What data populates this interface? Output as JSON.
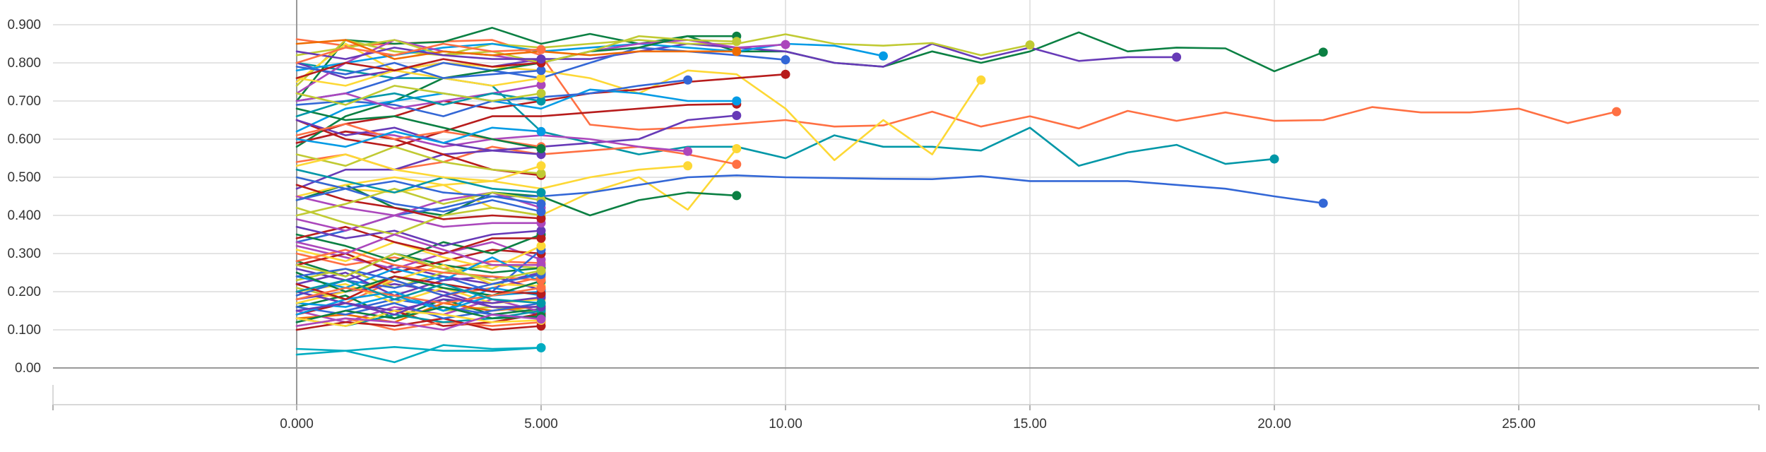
{
  "chart_data": {
    "type": "line",
    "title": "",
    "xlabel": "",
    "ylabel": "",
    "xlim": [
      -5,
      30
    ],
    "ylim": [
      -0.1,
      0.97
    ],
    "x_tick_labels": [
      {
        "value": 0,
        "label": "0.000"
      },
      {
        "value": 5,
        "label": "5.000"
      },
      {
        "value": 10,
        "label": "10.00"
      },
      {
        "value": 15,
        "label": "15.00"
      },
      {
        "value": 20,
        "label": "20.00"
      },
      {
        "value": 25,
        "label": "25.00"
      }
    ],
    "y_tick_labels": [
      {
        "value": 0.0,
        "label": "0.00"
      },
      {
        "value": 0.1,
        "label": "0.100"
      },
      {
        "value": 0.2,
        "label": "0.200"
      },
      {
        "value": 0.3,
        "label": "0.300"
      },
      {
        "value": 0.4,
        "label": "0.400"
      },
      {
        "value": 0.5,
        "label": "0.500"
      },
      {
        "value": 0.6,
        "label": "0.600"
      },
      {
        "value": 0.7,
        "label": "0.700"
      },
      {
        "value": 0.8,
        "label": "0.800"
      },
      {
        "value": 0.9,
        "label": "0.900"
      }
    ],
    "grid": true,
    "legend": "none",
    "series": [
      {
        "color": "#ff7043",
        "values": [
          0.862,
          0.845,
          0.85,
          0.856,
          0.86,
          0.82,
          0.638,
          0.625,
          0.63,
          0.64,
          0.65,
          0.633,
          0.636,
          0.672,
          0.633,
          0.66,
          0.628,
          0.674,
          0.648,
          0.67,
          0.648,
          0.65,
          0.684,
          0.67,
          0.67,
          0.68,
          0.642,
          0.672
        ]
      },
      {
        "color": "#0097a7",
        "values": [
          0.8,
          0.78,
          0.76,
          0.76,
          0.74,
          0.62,
          0.59,
          0.56,
          0.58,
          0.58,
          0.55,
          0.61,
          0.58,
          0.58,
          0.57,
          0.63,
          0.53,
          0.565,
          0.585,
          0.535,
          0.548
        ]
      },
      {
        "color": "#0b8043",
        "values": [
          0.7,
          0.86,
          0.85,
          0.855,
          0.892,
          0.85,
          0.876,
          0.85,
          0.87,
          0.83,
          0.83,
          0.8,
          0.79,
          0.83,
          0.8,
          0.83,
          0.88,
          0.83,
          0.84,
          0.838,
          0.778,
          0.828
        ]
      },
      {
        "color": "#673ab7",
        "values": [
          0.8,
          0.76,
          0.78,
          0.8,
          0.79,
          0.81,
          0.81,
          0.83,
          0.85,
          0.84,
          0.83,
          0.8,
          0.79,
          0.85,
          0.81,
          0.84,
          0.805,
          0.815,
          0.815
        ]
      },
      {
        "color": "#c0ca33",
        "values": [
          0.74,
          0.86,
          0.83,
          0.82,
          0.85,
          0.84,
          0.85,
          0.86,
          0.85,
          0.85,
          0.875,
          0.85,
          0.845,
          0.852,
          0.82,
          0.847
        ]
      },
      {
        "color": "#fdd835",
        "values": [
          0.75,
          0.85,
          0.78,
          0.8,
          0.79,
          0.78,
          0.76,
          0.72,
          0.78,
          0.77,
          0.68,
          0.545,
          0.65,
          0.56,
          0.755
        ]
      },
      {
        "color": "#039be5",
        "values": [
          0.78,
          0.8,
          0.82,
          0.84,
          0.85,
          0.83,
          0.84,
          0.85,
          0.84,
          0.83,
          0.85,
          0.845,
          0.818
        ]
      },
      {
        "color": "#3367d6",
        "values": [
          0.7,
          0.72,
          0.76,
          0.8,
          0.78,
          0.76,
          0.8,
          0.84,
          0.83,
          0.82,
          0.808
        ]
      },
      {
        "color": "#ab47bc",
        "values": [
          0.72,
          0.8,
          0.86,
          0.83,
          0.82,
          0.8,
          0.83,
          0.85,
          0.86,
          0.84,
          0.848
        ]
      },
      {
        "color": "#b71c1c",
        "values": [
          0.6,
          0.64,
          0.66,
          0.7,
          0.68,
          0.7,
          0.72,
          0.73,
          0.75,
          0.76,
          0.77
        ]
      },
      {
        "color": "#0b8043",
        "values": [
          0.58,
          0.66,
          0.7,
          0.76,
          0.78,
          0.8,
          0.83,
          0.84,
          0.87,
          0.87
        ]
      },
      {
        "color": "#fdd835",
        "values": [
          0.5,
          0.47,
          0.46,
          0.48,
          0.42,
          0.4,
          0.46,
          0.5,
          0.415,
          0.575
        ]
      },
      {
        "color": "#ff7043",
        "values": [
          0.54,
          0.56,
          0.52,
          0.54,
          0.58,
          0.56,
          0.57,
          0.58,
          0.56,
          0.534
        ]
      },
      {
        "color": "#b71c1c",
        "values": [
          0.65,
          0.6,
          0.58,
          0.62,
          0.66,
          0.66,
          0.67,
          0.68,
          0.69,
          0.692
        ]
      },
      {
        "color": "#673ab7",
        "values": [
          0.47,
          0.52,
          0.52,
          0.56,
          0.57,
          0.58,
          0.59,
          0.6,
          0.65,
          0.662
        ]
      },
      {
        "color": "#0b8043",
        "values": [
          0.44,
          0.48,
          0.42,
          0.4,
          0.46,
          0.45,
          0.4,
          0.44,
          0.46,
          0.452
        ]
      },
      {
        "color": "#c0ca33",
        "values": [
          0.82,
          0.84,
          0.86,
          0.82,
          0.83,
          0.8,
          0.83,
          0.87,
          0.86,
          0.856
        ]
      },
      {
        "color": "#039be5",
        "values": [
          0.62,
          0.68,
          0.7,
          0.72,
          0.7,
          0.68,
          0.73,
          0.72,
          0.7,
          0.7
        ]
      },
      {
        "color": "#ef6c00",
        "values": [
          0.85,
          0.86,
          0.81,
          0.83,
          0.82,
          0.83,
          0.82,
          0.83,
          0.83,
          0.83
        ]
      },
      {
        "color": "#3367d6",
        "values": [
          0.69,
          0.7,
          0.69,
          0.66,
          0.7,
          0.71,
          0.72,
          0.74,
          0.755
        ]
      },
      {
        "color": "#ab47bc",
        "values": [
          0.59,
          0.62,
          0.61,
          0.58,
          0.6,
          0.61,
          0.6,
          0.58,
          0.568
        ]
      },
      {
        "color": "#fdd835",
        "values": [
          0.45,
          0.48,
          0.5,
          0.48,
          0.49,
          0.47,
          0.5,
          0.52,
          0.53
        ]
      },
      {
        "color": "#3367d6",
        "values": [
          0.33,
          0.36,
          0.4,
          0.42,
          0.45,
          0.45,
          0.46,
          0.48,
          0.5,
          0.505,
          0.5,
          0.498,
          0.496,
          0.495,
          0.503,
          0.49,
          0.49,
          0.49,
          0.48,
          0.47,
          0.45,
          0.432
        ]
      },
      {
        "color": "#00acc1",
        "values": [
          0.035,
          0.045,
          0.055,
          0.045,
          0.045,
          0.053
        ]
      },
      {
        "color": "#00acc1",
        "values": [
          0.05,
          0.045,
          0.015,
          0.06,
          0.05,
          0.053
        ]
      },
      {
        "color": "#673ab7",
        "values": [
          0.18,
          0.2,
          0.22,
          0.2,
          0.16,
          0.14
        ]
      },
      {
        "color": "#c0ca33",
        "values": [
          0.21,
          0.18,
          0.2,
          0.15,
          0.16,
          0.145
        ]
      },
      {
        "color": "#ff7043",
        "values": [
          0.2,
          0.17,
          0.23,
          0.19,
          0.21,
          0.238
        ]
      },
      {
        "color": "#0b8043",
        "values": [
          0.16,
          0.19,
          0.13,
          0.18,
          0.14,
          0.155
        ]
      },
      {
        "color": "#ab47bc",
        "values": [
          0.15,
          0.12,
          0.16,
          0.14,
          0.18,
          0.148
        ]
      },
      {
        "color": "#b71c1c",
        "values": [
          0.14,
          0.17,
          0.15,
          0.11,
          0.12,
          0.142
        ]
      },
      {
        "color": "#3367d6",
        "values": [
          0.12,
          0.15,
          0.18,
          0.16,
          0.14,
          0.13
        ]
      },
      {
        "color": "#fdd835",
        "values": [
          0.2,
          0.22,
          0.17,
          0.21,
          0.17,
          0.18
        ]
      },
      {
        "color": "#039be5",
        "values": [
          0.17,
          0.16,
          0.19,
          0.15,
          0.21,
          0.19
        ]
      },
      {
        "color": "#ef6c00",
        "values": [
          0.13,
          0.14,
          0.12,
          0.17,
          0.15,
          0.162
        ]
      },
      {
        "color": "#673ab7",
        "values": [
          0.26,
          0.23,
          0.27,
          0.24,
          0.22,
          0.25
        ]
      },
      {
        "color": "#c0ca33",
        "values": [
          0.23,
          0.26,
          0.21,
          0.25,
          0.27,
          0.262
        ]
      },
      {
        "color": "#ff7043",
        "values": [
          0.3,
          0.27,
          0.29,
          0.26,
          0.28,
          0.275
        ]
      },
      {
        "color": "#0b8043",
        "values": [
          0.28,
          0.24,
          0.3,
          0.27,
          0.25,
          0.262
        ]
      },
      {
        "color": "#ab47bc",
        "values": [
          0.32,
          0.29,
          0.26,
          0.3,
          0.33,
          0.284
        ]
      },
      {
        "color": "#b71c1c",
        "values": [
          0.27,
          0.3,
          0.25,
          0.28,
          0.31,
          0.3
        ]
      },
      {
        "color": "#3367d6",
        "values": [
          0.19,
          0.23,
          0.21,
          0.24,
          0.2,
          0.31
        ]
      },
      {
        "color": "#fdd835",
        "values": [
          0.31,
          0.28,
          0.33,
          0.29,
          0.26,
          0.32
        ]
      },
      {
        "color": "#039be5",
        "values": [
          0.24,
          0.21,
          0.26,
          0.23,
          0.29,
          0.225
        ]
      },
      {
        "color": "#0b8043",
        "values": [
          0.35,
          0.32,
          0.28,
          0.33,
          0.3,
          0.35
        ]
      },
      {
        "color": "#b71c1c",
        "values": [
          0.34,
          0.37,
          0.33,
          0.3,
          0.34,
          0.34
        ]
      },
      {
        "color": "#673ab7",
        "values": [
          0.37,
          0.34,
          0.36,
          0.32,
          0.35,
          0.36
        ]
      },
      {
        "color": "#ab47bc",
        "values": [
          0.39,
          0.36,
          0.4,
          0.37,
          0.38,
          0.38
        ]
      },
      {
        "color": "#c0ca33",
        "values": [
          0.42,
          0.38,
          0.35,
          0.4,
          0.42,
          0.4
        ]
      },
      {
        "color": "#ff7043",
        "values": [
          0.11,
          0.13,
          0.1,
          0.12,
          0.11,
          0.12
        ]
      },
      {
        "color": "#0097a7",
        "values": [
          0.13,
          0.11,
          0.14,
          0.12,
          0.13,
          0.15
        ]
      },
      {
        "color": "#b71c1c",
        "values": [
          0.1,
          0.12,
          0.11,
          0.13,
          0.1,
          0.11
        ]
      },
      {
        "color": "#3367d6",
        "values": [
          0.16,
          0.14,
          0.17,
          0.13,
          0.15,
          0.17
        ]
      },
      {
        "color": "#673ab7",
        "values": [
          0.22,
          0.25,
          0.19,
          0.23,
          0.24,
          0.205
        ]
      },
      {
        "color": "#fdd835",
        "values": [
          0.17,
          0.2,
          0.23,
          0.27,
          0.22,
          0.215
        ]
      },
      {
        "color": "#0b8043",
        "values": [
          0.25,
          0.2,
          0.24,
          0.21,
          0.19,
          0.228
        ]
      },
      {
        "color": "#ab47bc",
        "values": [
          0.45,
          0.42,
          0.4,
          0.44,
          0.46,
          0.42
        ]
      },
      {
        "color": "#b71c1c",
        "values": [
          0.48,
          0.44,
          0.42,
          0.39,
          0.4,
          0.392
        ]
      },
      {
        "color": "#3367d6",
        "values": [
          0.5,
          0.47,
          0.43,
          0.41,
          0.44,
          0.41
        ]
      },
      {
        "color": "#c0ca33",
        "values": [
          0.4,
          0.43,
          0.47,
          0.43,
          0.46,
          0.44
        ]
      },
      {
        "color": "#0097a7",
        "values": [
          0.52,
          0.49,
          0.46,
          0.5,
          0.47,
          0.46
        ]
      },
      {
        "color": "#ff7043",
        "values": [
          0.28,
          0.31,
          0.27,
          0.25,
          0.24,
          0.23
        ]
      },
      {
        "color": "#673ab7",
        "values": [
          0.2,
          0.17,
          0.15,
          0.18,
          0.17,
          0.185
        ]
      },
      {
        "color": "#039be5",
        "values": [
          0.14,
          0.18,
          0.2,
          0.15,
          0.19,
          0.2
        ]
      },
      {
        "color": "#ab47bc",
        "values": [
          0.33,
          0.3,
          0.35,
          0.31,
          0.27,
          0.27
        ]
      },
      {
        "color": "#b71c1c",
        "values": [
          0.22,
          0.18,
          0.24,
          0.22,
          0.2,
          0.195
        ]
      },
      {
        "color": "#0b8043",
        "values": [
          0.12,
          0.15,
          0.13,
          0.16,
          0.13,
          0.135
        ]
      },
      {
        "color": "#3367d6",
        "values": [
          0.24,
          0.26,
          0.23,
          0.19,
          0.22,
          0.245
        ]
      },
      {
        "color": "#ff7043",
        "values": [
          0.18,
          0.21,
          0.19,
          0.17,
          0.19,
          0.21
        ]
      },
      {
        "color": "#fdd835",
        "values": [
          0.13,
          0.11,
          0.15,
          0.14,
          0.12,
          0.125
        ]
      },
      {
        "color": "#673ab7",
        "values": [
          0.15,
          0.17,
          0.14,
          0.19,
          0.16,
          0.16
        ]
      },
      {
        "color": "#c0ca33",
        "values": [
          0.27,
          0.24,
          0.3,
          0.26,
          0.23,
          0.255
        ]
      },
      {
        "color": "#ab47bc",
        "values": [
          0.11,
          0.13,
          0.12,
          0.1,
          0.14,
          0.128
        ]
      },
      {
        "color": "#0097a7",
        "values": [
          0.2,
          0.23,
          0.18,
          0.22,
          0.18,
          0.17
        ]
      },
      {
        "color": "#3367d6",
        "values": [
          0.44,
          0.47,
          0.49,
          0.46,
          0.45,
          0.43
        ]
      },
      {
        "color": "#b71c1c",
        "values": [
          0.59,
          0.62,
          0.6,
          0.56,
          0.52,
          0.505
        ]
      },
      {
        "color": "#c0ca33",
        "values": [
          0.56,
          0.53,
          0.58,
          0.54,
          0.52,
          0.51
        ]
      },
      {
        "color": "#fdd835",
        "values": [
          0.53,
          0.56,
          0.52,
          0.5,
          0.49,
          0.53
        ]
      },
      {
        "color": "#673ab7",
        "values": [
          0.65,
          0.61,
          0.63,
          0.59,
          0.57,
          0.56
        ]
      },
      {
        "color": "#ff7043",
        "values": [
          0.61,
          0.64,
          0.6,
          0.62,
          0.6,
          0.58
        ]
      },
      {
        "color": "#0b8043",
        "values": [
          0.68,
          0.65,
          0.66,
          0.63,
          0.6,
          0.575
        ]
      },
      {
        "color": "#039be5",
        "values": [
          0.6,
          0.58,
          0.62,
          0.59,
          0.63,
          0.62
        ]
      },
      {
        "color": "#ab47bc",
        "values": [
          0.7,
          0.72,
          0.68,
          0.7,
          0.72,
          0.742
        ]
      },
      {
        "color": "#fdd835",
        "values": [
          0.76,
          0.74,
          0.78,
          0.76,
          0.74,
          0.76
        ]
      },
      {
        "color": "#3367d6",
        "values": [
          0.79,
          0.77,
          0.8,
          0.76,
          0.77,
          0.78
        ]
      },
      {
        "color": "#0097a7",
        "values": [
          0.66,
          0.7,
          0.72,
          0.69,
          0.72,
          0.7
        ]
      },
      {
        "color": "#c0ca33",
        "values": [
          0.72,
          0.69,
          0.74,
          0.72,
          0.7,
          0.72
        ]
      },
      {
        "color": "#b71c1c",
        "values": [
          0.76,
          0.8,
          0.78,
          0.81,
          0.79,
          0.8
        ]
      },
      {
        "color": "#673ab7",
        "values": [
          0.83,
          0.81,
          0.84,
          0.82,
          0.81,
          0.81
        ]
      },
      {
        "color": "#ff7043",
        "values": [
          0.8,
          0.84,
          0.82,
          0.85,
          0.83,
          0.835
        ]
      }
    ]
  }
}
